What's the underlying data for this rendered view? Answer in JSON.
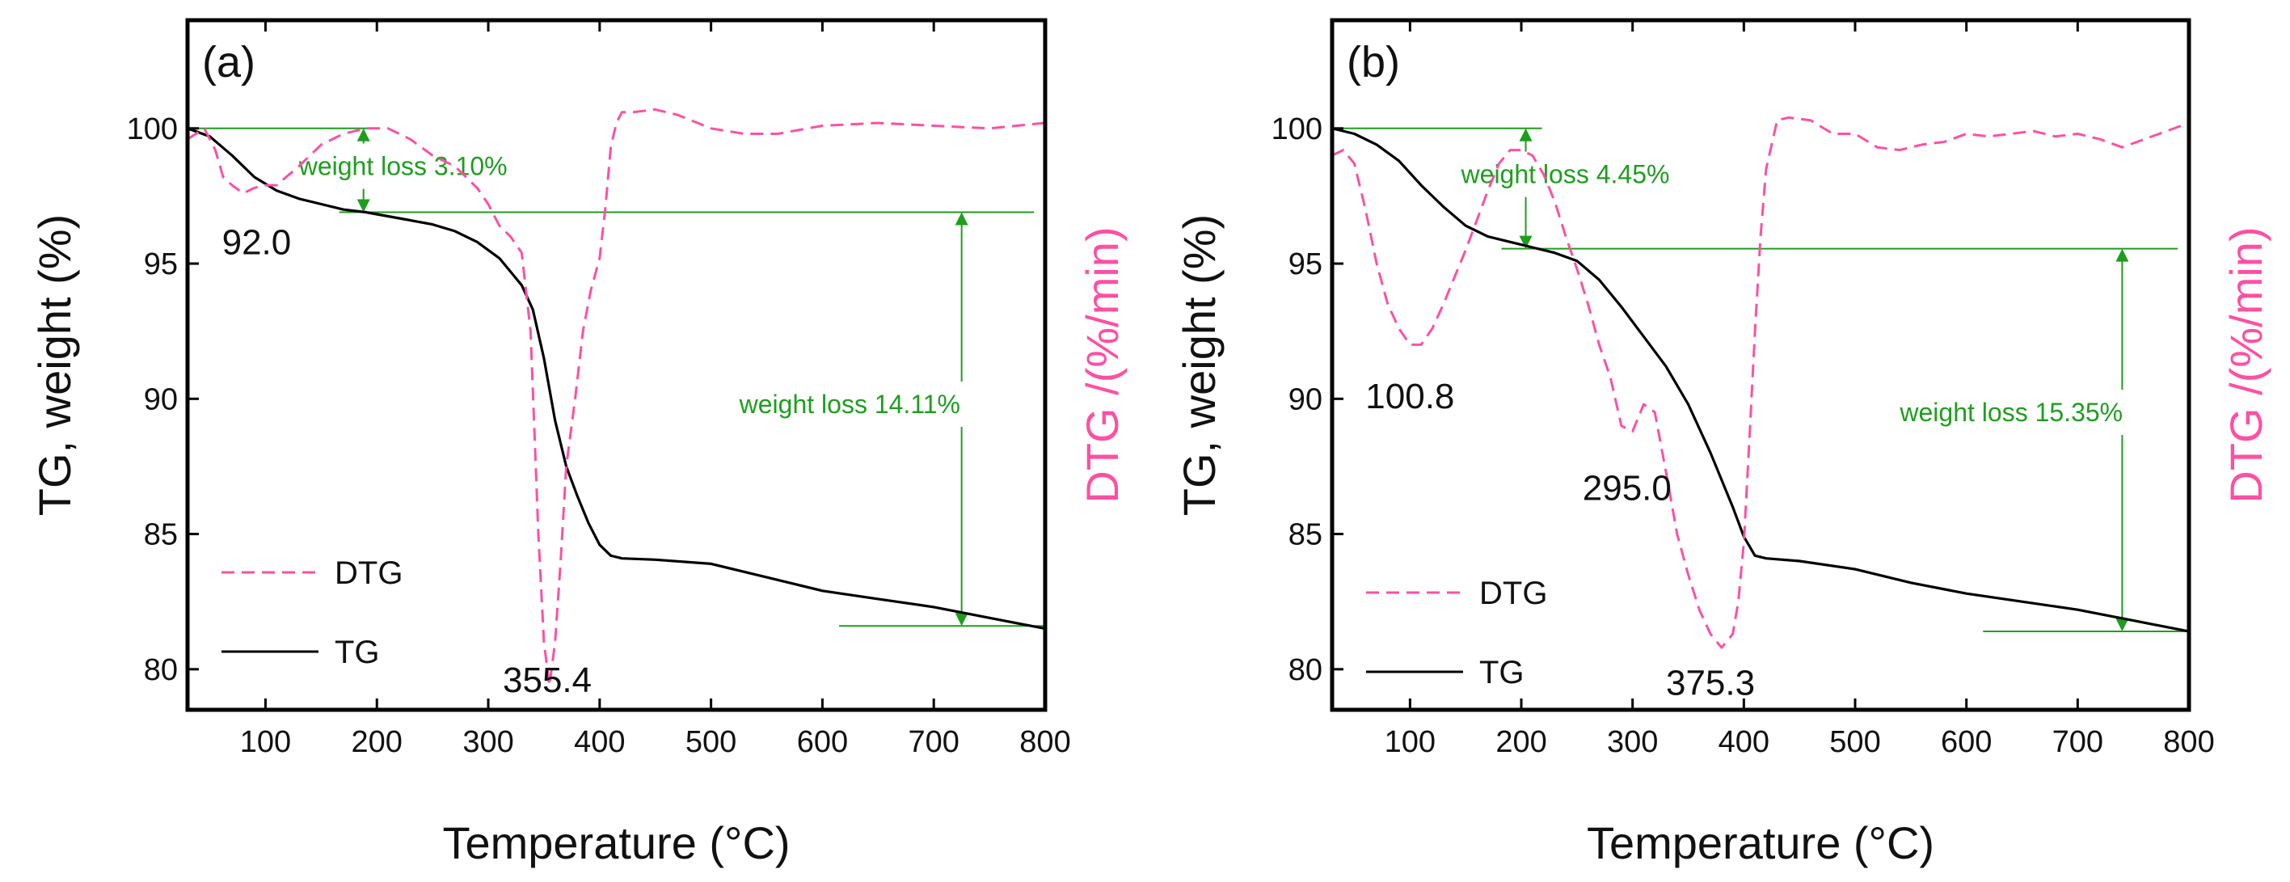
{
  "colors": {
    "tg": "#000000",
    "dtg": "#ff4fa3",
    "annotation": "#1e9e1e",
    "axis": "#000000"
  },
  "chart_data": [
    {
      "type": "line",
      "panel_label": "(a)",
      "xlabel": "Temperature (°C)",
      "ylabel": "TG, weight (%)",
      "y2label": "DTG /(%/min)",
      "xlim": [
        30,
        800
      ],
      "ylim": [
        78.5,
        104
      ],
      "xticks": [
        100,
        200,
        300,
        400,
        500,
        600,
        700,
        800
      ],
      "yticks": [
        80,
        85,
        90,
        95,
        100
      ],
      "legend": {
        "position": "bottom-left",
        "entries": [
          "DTG",
          "TG"
        ]
      },
      "series": [
        {
          "name": "TG",
          "style": "solid",
          "x": [
            30,
            50,
            70,
            90,
            110,
            130,
            150,
            170,
            190,
            210,
            230,
            250,
            270,
            290,
            310,
            330,
            340,
            350,
            360,
            370,
            380,
            390,
            400,
            410,
            420,
            450,
            500,
            550,
            600,
            650,
            700,
            750,
            800
          ],
          "y": [
            100,
            99.7,
            99,
            98.2,
            97.7,
            97.4,
            97.2,
            97.0,
            96.9,
            96.75,
            96.6,
            96.45,
            96.2,
            95.8,
            95.2,
            94.2,
            93.3,
            91.5,
            89.2,
            87.5,
            86.4,
            85.4,
            84.6,
            84.2,
            84.1,
            84.05,
            83.9,
            83.4,
            82.9,
            82.6,
            82.3,
            81.9,
            81.5
          ]
        },
        {
          "name": "DTG",
          "style": "dashed",
          "x": [
            30,
            45,
            55,
            62,
            70,
            80,
            90,
            100,
            110,
            130,
            150,
            170,
            190,
            210,
            230,
            250,
            270,
            290,
            300,
            310,
            320,
            330,
            338,
            345,
            350,
            355,
            360,
            365,
            370,
            378,
            385,
            392,
            400,
            405,
            410,
            415,
            420,
            430,
            450,
            470,
            500,
            530,
            560,
            600,
            650,
            700,
            750,
            800
          ],
          "y": [
            99.6,
            100,
            99.2,
            98.2,
            97.9,
            97.6,
            97.8,
            97.9,
            97.9,
            98.6,
            99.4,
            99.8,
            100,
            100,
            99.6,
            99,
            98.6,
            97.8,
            97.2,
            96.4,
            96,
            95.4,
            92.5,
            85,
            81,
            79.4,
            81,
            84,
            87.5,
            90,
            92.5,
            94,
            95.2,
            97,
            99.3,
            100.2,
            100.6,
            100.6,
            100.7,
            100.5,
            100,
            99.8,
            99.8,
            100.1,
            100.2,
            100.1,
            100,
            100.2
          ]
        }
      ],
      "peak_labels": [
        {
          "text": "92.0",
          "x": 92,
          "y": 95.8
        },
        {
          "text": "355.4",
          "x": 353,
          "y": 79.6
        }
      ],
      "weight_losses": [
        {
          "text": "weight loss 3.10%",
          "x": 188,
          "y_top": 100,
          "y_bottom": 96.9,
          "label_y": 98.6
        },
        {
          "text": "weight loss 14.11%",
          "x": 725,
          "y_top": 96.9,
          "y_bottom": 81.6,
          "label_y": 89.8
        }
      ]
    },
    {
      "type": "line",
      "panel_label": "(b)",
      "xlabel": "Temperature (°C)",
      "ylabel": "TG, weight (%)",
      "y2label": "DTG /(%/min)",
      "xlim": [
        30,
        800
      ],
      "ylim": [
        78.5,
        104
      ],
      "xticks": [
        100,
        200,
        300,
        400,
        500,
        600,
        700,
        800
      ],
      "yticks": [
        80,
        85,
        90,
        95,
        100
      ],
      "legend": {
        "position": "bottom-left",
        "entries": [
          "DTG",
          "TG"
        ]
      },
      "series": [
        {
          "name": "TG",
          "style": "solid",
          "x": [
            30,
            50,
            70,
            90,
            110,
            130,
            150,
            170,
            190,
            210,
            230,
            250,
            270,
            290,
            310,
            330,
            350,
            370,
            390,
            400,
            410,
            420,
            450,
            500,
            550,
            600,
            650,
            700,
            750,
            800
          ],
          "y": [
            100,
            99.8,
            99.4,
            98.8,
            97.9,
            97.1,
            96.4,
            96.0,
            95.8,
            95.6,
            95.4,
            95.1,
            94.4,
            93.4,
            92.3,
            91.2,
            89.8,
            88.0,
            86.0,
            84.9,
            84.2,
            84.1,
            84.0,
            83.7,
            83.2,
            82.8,
            82.5,
            82.2,
            81.8,
            81.4
          ]
        },
        {
          "name": "DTG",
          "style": "dashed",
          "x": [
            30,
            40,
            50,
            60,
            70,
            80,
            90,
            100,
            110,
            120,
            130,
            140,
            150,
            160,
            170,
            180,
            190,
            200,
            210,
            220,
            230,
            240,
            250,
            260,
            270,
            280,
            290,
            300,
            310,
            320,
            330,
            340,
            350,
            360,
            370,
            380,
            390,
            395,
            400,
            405,
            410,
            415,
            420,
            430,
            440,
            460,
            480,
            500,
            520,
            540,
            560,
            580,
            600,
            620,
            640,
            660,
            680,
            700,
            720,
            740,
            760,
            780,
            800
          ],
          "y": [
            99.0,
            99.2,
            98.7,
            97.0,
            95.0,
            93.5,
            92.6,
            92.0,
            92.0,
            92.6,
            93.5,
            94.5,
            95.5,
            96.6,
            97.7,
            98.7,
            99.2,
            99.2,
            99.0,
            98.3,
            97.3,
            96.0,
            94.8,
            93.5,
            92.0,
            90.8,
            89.0,
            88.8,
            89.8,
            89.5,
            87.3,
            85.0,
            83.5,
            82.2,
            81.3,
            80.8,
            81.3,
            82.5,
            84.7,
            88.5,
            92.5,
            96.0,
            98.5,
            100.3,
            100.4,
            100.3,
            99.8,
            99.8,
            99.3,
            99.2,
            99.4,
            99.5,
            99.8,
            99.7,
            99.8,
            99.9,
            99.7,
            99.8,
            99.6,
            99.3,
            99.6,
            99.9,
            100.2
          ]
        }
      ],
      "peak_labels": [
        {
          "text": "100.8",
          "x": 100,
          "y": 90.1
        },
        {
          "text": "295.0",
          "x": 295,
          "y": 86.7
        },
        {
          "text": "375.3",
          "x": 370,
          "y": 79.5
        }
      ],
      "weight_losses": [
        {
          "text": "weight loss 4.45%",
          "x": 204,
          "y_top": 100,
          "y_bottom": 95.55,
          "label_y": 98.3
        },
        {
          "text": "weight loss 15.35%",
          "x": 740,
          "y_top": 95.55,
          "y_bottom": 81.4,
          "label_y": 89.5
        }
      ]
    }
  ]
}
